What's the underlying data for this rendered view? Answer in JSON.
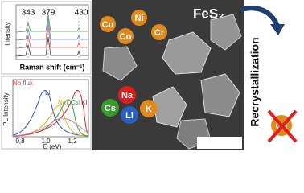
{
  "raman": {
    "peaks": [
      "343",
      "379",
      "430"
    ],
    "y_label": "Intensity",
    "x_label": "Raman shift (cm⁻¹)"
  },
  "pl": {
    "y_label": "PL Intensity",
    "x_label": "E (eV)",
    "x_ticks": [
      "0,8",
      "1,0",
      "1,2"
    ],
    "legend": [
      "No flux",
      "LiI",
      "NaI,",
      "CsI",
      "KI"
    ]
  },
  "sem": {
    "formula": "FeS₂",
    "dopants": [
      "Cu",
      "Co",
      "Ni",
      "Cr"
    ],
    "fluxes": [
      "Na",
      "Cs",
      "Li",
      "K"
    ]
  },
  "process": {
    "label": "Recrystallization",
    "removed": "Cu"
  }
}
